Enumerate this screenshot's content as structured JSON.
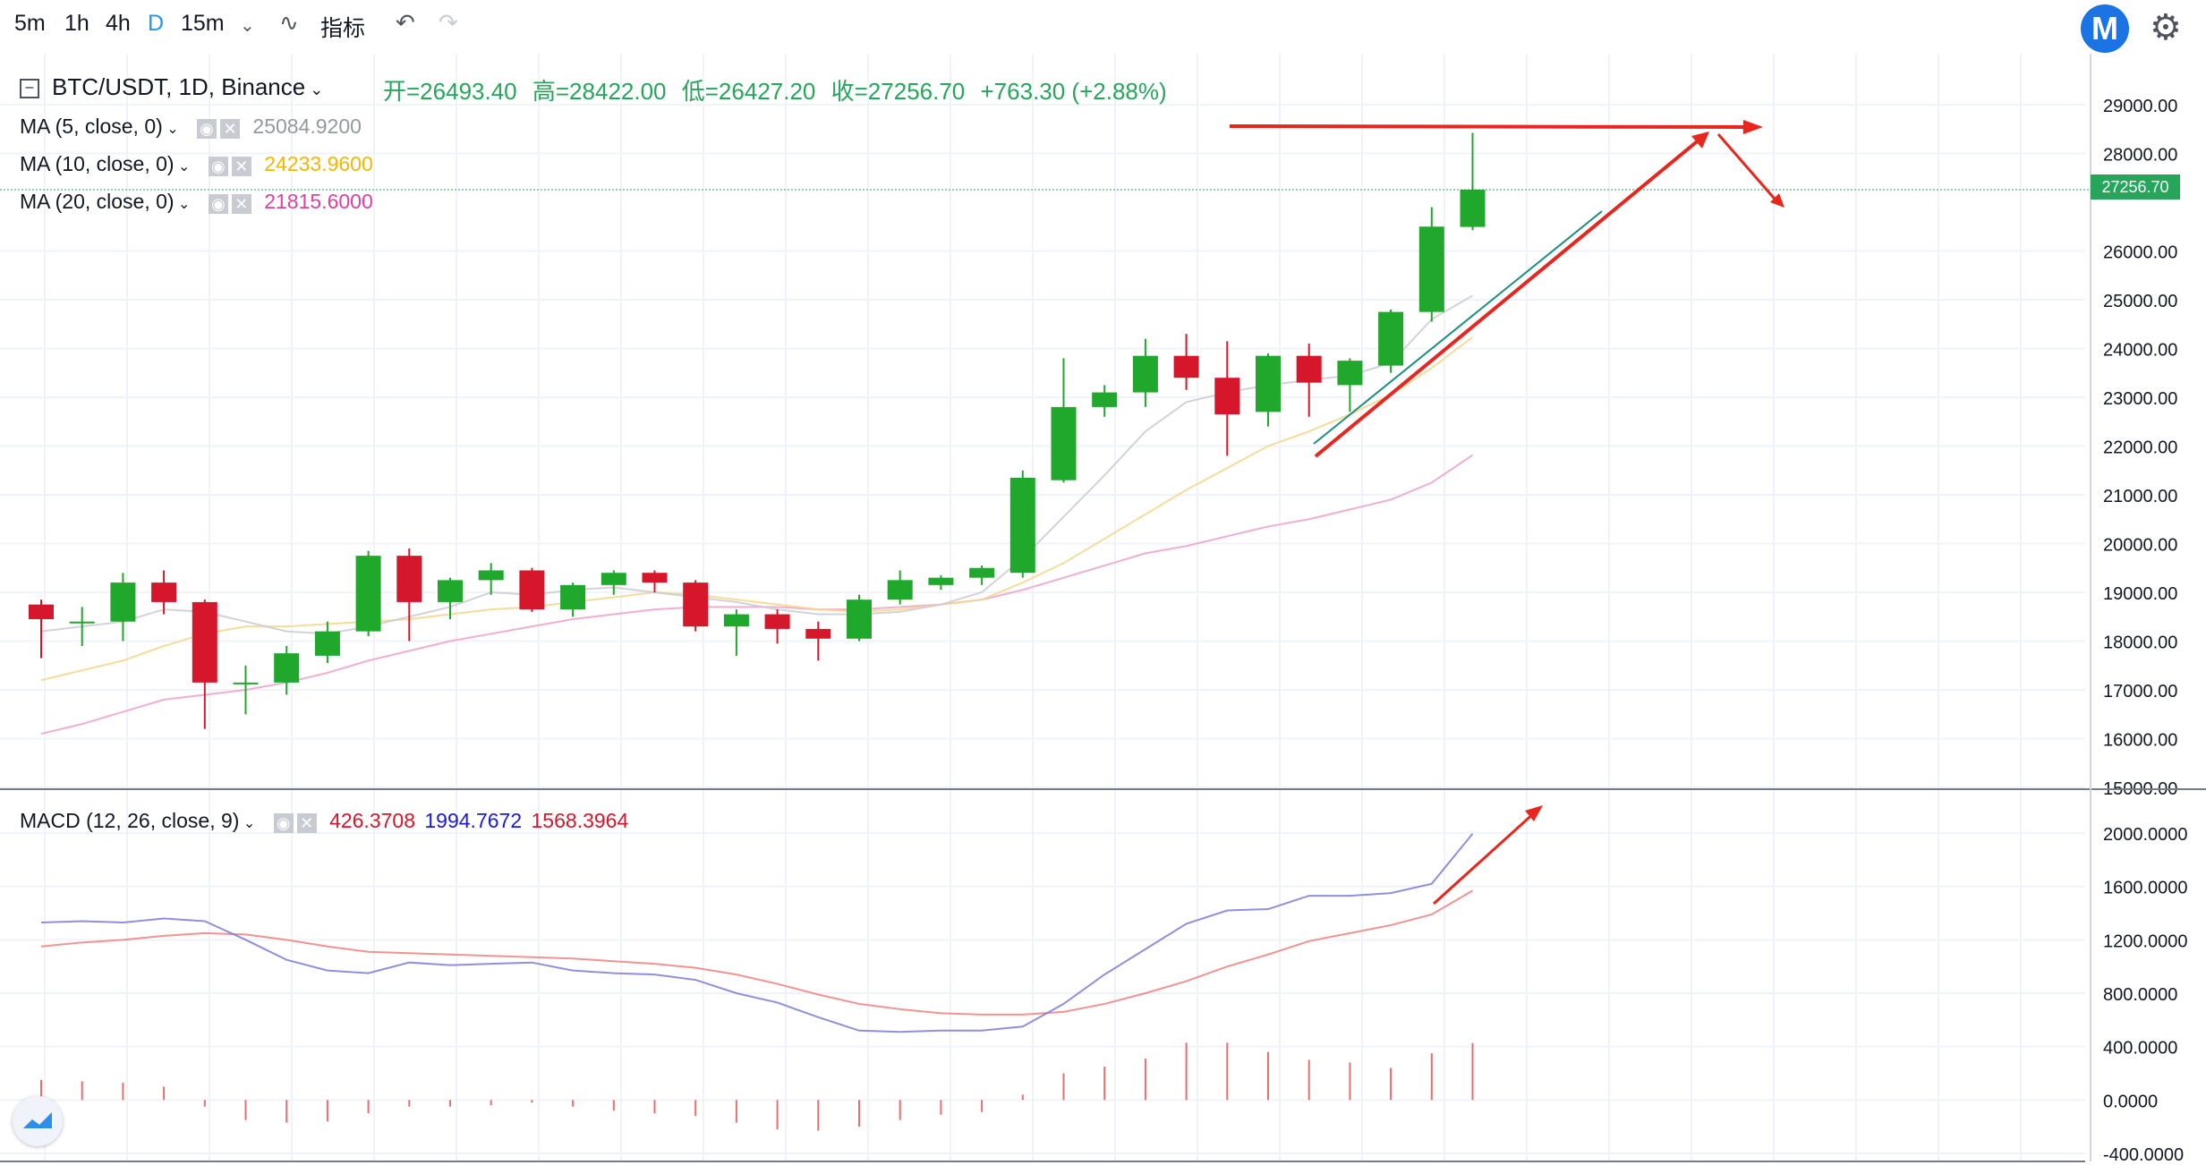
{
  "toolbar": {
    "timeframes": [
      "5m",
      "1h",
      "4h",
      "D",
      "15m"
    ],
    "active_timeframe": "D",
    "indicators_label": "指标"
  },
  "header": {
    "symbol": "BTC/USDT, 1D, Binance",
    "open_label": "开=26493.40",
    "high_label": "高=28422.00",
    "low_label": "低=26427.20",
    "close_label": "收=27256.70",
    "change_label": "+763.30 (+2.88%)"
  },
  "indicators": {
    "ma5": {
      "label": "MA (5, close, 0)",
      "value": "25084.9200",
      "color": "#9598a1"
    },
    "ma10": {
      "label": "MA (10, close, 0)",
      "value": "24233.9600",
      "color": "#f5b800"
    },
    "ma20": {
      "label": "MA (20, close, 0)",
      "value": "21815.6000",
      "color": "#e040a0"
    },
    "macd": {
      "label": "MACD (12, 26, close, 9)",
      "hist": "426.3708",
      "macd": "1994.7672",
      "signal": "1568.3964"
    }
  },
  "last_price": "27256.70",
  "colors": {
    "up": "#1fa82b",
    "down": "#d6172b",
    "macd_line": "#7b7bd8",
    "signal_line": "#f08080",
    "annotation": "#e8261e",
    "grid": "#f0f3fa"
  },
  "chart_data": {
    "type": "candlestick",
    "price_axis_labels": [
      "29000.00",
      "28000.00",
      "27256.70",
      "26000.00",
      "25000.00",
      "24000.00",
      "23000.00",
      "22000.00",
      "21000.00",
      "20000.00",
      "19000.00",
      "18000.00",
      "17000.00",
      "16000.00",
      "15000.00"
    ],
    "price_axis_values": [
      29000,
      28000,
      26000,
      25000,
      24000,
      23000,
      22000,
      21000,
      20000,
      19000,
      18000,
      17000,
      16000,
      15000
    ],
    "candles": [
      {
        "o": 18750,
        "h": 18850,
        "l": 17650,
        "c": 18450
      },
      {
        "o": 18400,
        "h": 18700,
        "l": 17900,
        "c": 18400
      },
      {
        "o": 18400,
        "h": 19400,
        "l": 18000,
        "c": 19200
      },
      {
        "o": 19200,
        "h": 19450,
        "l": 18550,
        "c": 18800
      },
      {
        "o": 18800,
        "h": 18850,
        "l": 16200,
        "c": 17150
      },
      {
        "o": 17150,
        "h": 17500,
        "l": 16500,
        "c": 17150
      },
      {
        "o": 17150,
        "h": 17900,
        "l": 16900,
        "c": 17750
      },
      {
        "o": 17700,
        "h": 18400,
        "l": 17550,
        "c": 18200
      },
      {
        "o": 18200,
        "h": 19850,
        "l": 18100,
        "c": 19750
      },
      {
        "o": 19750,
        "h": 19900,
        "l": 18000,
        "c": 18800
      },
      {
        "o": 18800,
        "h": 19300,
        "l": 18450,
        "c": 19250
      },
      {
        "o": 19250,
        "h": 19600,
        "l": 18950,
        "c": 19450
      },
      {
        "o": 19450,
        "h": 19500,
        "l": 18600,
        "c": 18650
      },
      {
        "o": 18650,
        "h": 19200,
        "l": 18500,
        "c": 19150
      },
      {
        "o": 19150,
        "h": 19450,
        "l": 18950,
        "c": 19400
      },
      {
        "o": 19400,
        "h": 19450,
        "l": 19000,
        "c": 19200
      },
      {
        "o": 19200,
        "h": 19250,
        "l": 18200,
        "c": 18300
      },
      {
        "o": 18300,
        "h": 18650,
        "l": 17700,
        "c": 18550
      },
      {
        "o": 18550,
        "h": 18650,
        "l": 17950,
        "c": 18250
      },
      {
        "o": 18250,
        "h": 18400,
        "l": 17600,
        "c": 18050
      },
      {
        "o": 18050,
        "h": 18950,
        "l": 18000,
        "c": 18850
      },
      {
        "o": 18850,
        "h": 19450,
        "l": 18750,
        "c": 19250
      },
      {
        "o": 19150,
        "h": 19350,
        "l": 19050,
        "c": 19300
      },
      {
        "o": 19300,
        "h": 19550,
        "l": 19150,
        "c": 19500
      },
      {
        "o": 19400,
        "h": 21500,
        "l": 19300,
        "c": 21350
      },
      {
        "o": 21300,
        "h": 23800,
        "l": 21250,
        "c": 22800
      },
      {
        "o": 22800,
        "h": 23250,
        "l": 22600,
        "c": 23100
      },
      {
        "o": 23100,
        "h": 24200,
        "l": 22800,
        "c": 23850
      },
      {
        "o": 23850,
        "h": 24300,
        "l": 23150,
        "c": 23400
      },
      {
        "o": 23400,
        "h": 24150,
        "l": 21800,
        "c": 22650
      },
      {
        "o": 22700,
        "h": 23900,
        "l": 22400,
        "c": 23850
      },
      {
        "o": 23850,
        "h": 24100,
        "l": 22600,
        "c": 23300
      },
      {
        "o": 23250,
        "h": 23800,
        "l": 22700,
        "c": 23750
      },
      {
        "o": 23650,
        "h": 24800,
        "l": 23500,
        "c": 24750
      },
      {
        "o": 24750,
        "h": 26900,
        "l": 24550,
        "c": 26500
      },
      {
        "o": 26493.4,
        "h": 28422,
        "l": 26427.2,
        "c": 27256.7
      }
    ],
    "ma5": [
      18200,
      18300,
      18400,
      18650,
      18600,
      18400,
      18200,
      18150,
      18300,
      18500,
      18700,
      19000,
      18950,
      19050,
      19100,
      19000,
      18900,
      18800,
      18650,
      18550,
      18550,
      18600,
      18750,
      19000,
      19700,
      20550,
      21400,
      22300,
      22900,
      23100,
      23250,
      23350,
      23450,
      23700,
      24600,
      25084.92
    ],
    "ma10": [
      17200,
      17400,
      17600,
      17900,
      18150,
      18300,
      18300,
      18350,
      18400,
      18450,
      18550,
      18650,
      18700,
      18800,
      18900,
      19000,
      18950,
      18850,
      18750,
      18650,
      18600,
      18650,
      18750,
      18850,
      19200,
      19600,
      20100,
      20600,
      21100,
      21550,
      22000,
      22300,
      22650,
      23050,
      23600,
      24233.96
    ],
    "ma20": [
      16100,
      16300,
      16550,
      16800,
      16900,
      17000,
      17150,
      17350,
      17600,
      17800,
      18000,
      18150,
      18300,
      18450,
      18550,
      18650,
      18700,
      18700,
      18700,
      18650,
      18650,
      18700,
      18750,
      18850,
      19050,
      19300,
      19550,
      19800,
      19950,
      20150,
      20350,
      20500,
      20700,
      20900,
      21250,
      21815.6
    ],
    "macd_axis_labels": [
      "2000.0000",
      "1600.0000",
      "1200.0000",
      "800.0000",
      "400.0000",
      "0.0000",
      "-400.0000"
    ],
    "macd_axis_values": [
      2000,
      1600,
      1200,
      800,
      400,
      0,
      -400
    ],
    "macd_line": [
      1330,
      1340,
      1330,
      1360,
      1340,
      1200,
      1050,
      970,
      950,
      1030,
      1010,
      1020,
      1030,
      970,
      950,
      940,
      900,
      800,
      730,
      620,
      520,
      510,
      520,
      520,
      550,
      720,
      940,
      1130,
      1320,
      1420,
      1430,
      1530,
      1530,
      1550,
      1620,
      1994.77
    ],
    "signal_line": [
      1150,
      1180,
      1200,
      1230,
      1250,
      1240,
      1200,
      1150,
      1110,
      1100,
      1090,
      1080,
      1070,
      1060,
      1040,
      1020,
      990,
      940,
      870,
      790,
      720,
      680,
      650,
      640,
      640,
      660,
      720,
      800,
      890,
      1000,
      1090,
      1190,
      1250,
      1310,
      1390,
      1568.4
    ],
    "histogram": [
      150,
      140,
      130,
      100,
      -50,
      -150,
      -170,
      -160,
      -100,
      -50,
      -50,
      -40,
      -20,
      -50,
      -80,
      -100,
      -120,
      -170,
      -220,
      -230,
      -200,
      -150,
      -110,
      -90,
      40,
      200,
      250,
      310,
      430,
      430,
      360,
      300,
      280,
      240,
      350,
      426.37
    ]
  }
}
